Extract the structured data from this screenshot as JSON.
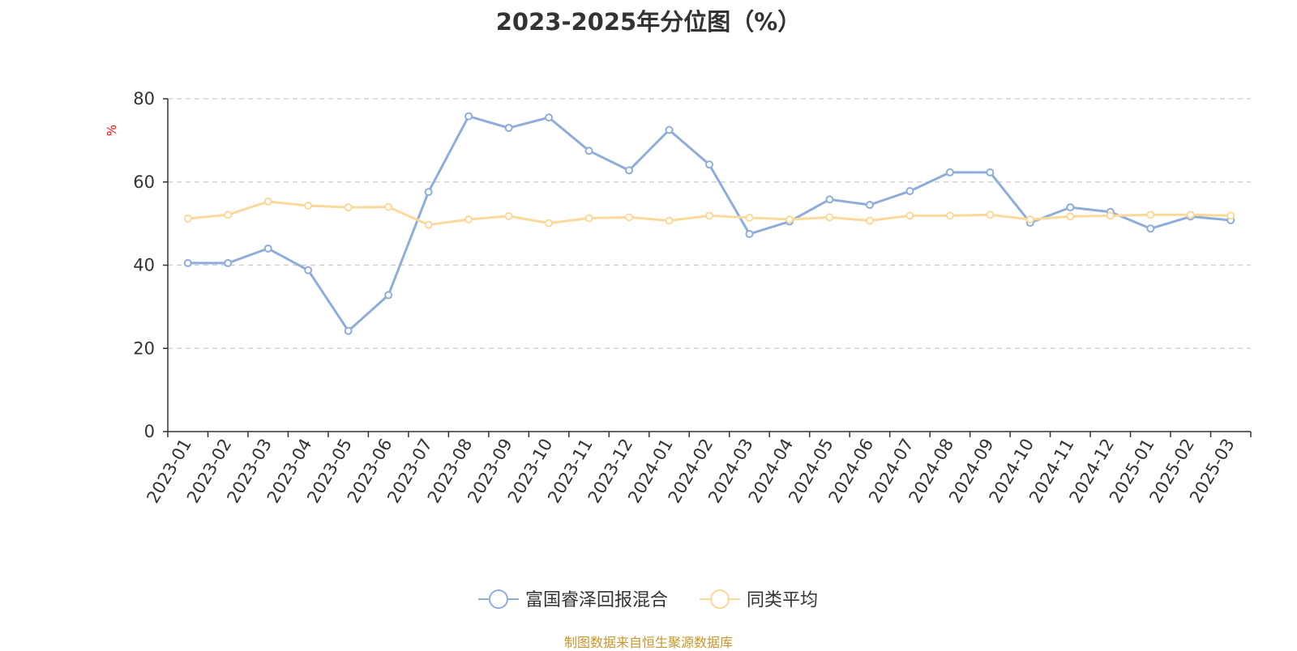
{
  "source_note": "制图数据来自恒生聚源数据库",
  "colors": {
    "series_1": "#8eadd9",
    "series_2": "#fbd99a",
    "axis": "#333333",
    "grid": "#cccccc",
    "unit_label": "#ff0000",
    "source_note": "#c8952a"
  },
  "chart_data": {
    "type": "line",
    "title": "2023-2025年分位图（%）",
    "ylabel": "%",
    "ylim": [
      0,
      80
    ],
    "yticks": [
      0,
      20,
      40,
      60,
      80
    ],
    "grid": true,
    "legend_position": "bottom",
    "x": [
      "2023-01",
      "2023-02",
      "2023-03",
      "2023-04",
      "2023-05",
      "2023-06",
      "2023-07",
      "2023-08",
      "2023-09",
      "2023-10",
      "2023-11",
      "2023-12",
      "2024-01",
      "2024-02",
      "2024-03",
      "2024-04",
      "2024-05",
      "2024-06",
      "2024-07",
      "2024-08",
      "2024-09",
      "2024-10",
      "2024-11",
      "2024-12",
      "2025-01",
      "2025-02",
      "2025-03"
    ],
    "series": [
      {
        "name": "富国睿泽回报混合",
        "values": [
          40.5,
          40.5,
          44.0,
          38.8,
          24.2,
          32.8,
          57.6,
          75.8,
          73.0,
          75.5,
          67.5,
          62.8,
          72.5,
          64.2,
          47.5,
          50.5,
          55.8,
          54.5,
          57.8,
          62.3,
          62.3,
          50.2,
          53.9,
          52.8,
          48.8,
          51.7,
          50.8
        ]
      },
      {
        "name": "同类平均",
        "values": [
          51.2,
          52.1,
          55.3,
          54.3,
          53.9,
          54.0,
          49.7,
          51.0,
          51.8,
          50.1,
          51.3,
          51.5,
          50.7,
          51.9,
          51.4,
          51.0,
          51.5,
          50.7,
          51.9,
          51.9,
          52.1,
          51.0,
          51.7,
          51.9,
          52.1,
          52.1,
          51.9
        ]
      }
    ]
  }
}
